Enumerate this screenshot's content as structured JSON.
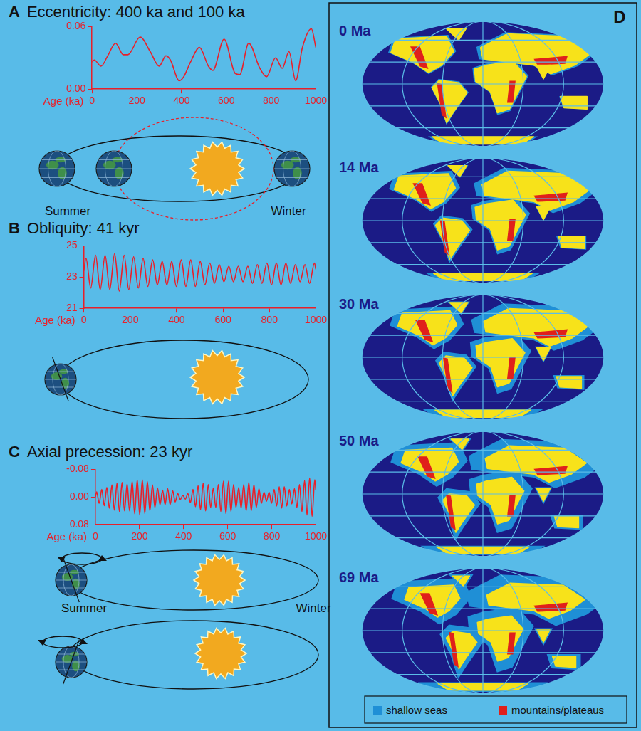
{
  "chart_data": [
    {
      "type": "line",
      "panel": "A",
      "title": "Eccentricity: 400 ka and 100 ka",
      "x_label": "Age (ka)",
      "color": "#e8202a",
      "x": [
        0,
        10,
        40,
        70,
        105,
        140,
        160,
        215,
        260,
        300,
        330,
        350,
        390,
        410,
        440,
        480,
        520,
        540,
        590,
        640,
        660,
        700,
        750,
        780,
        820,
        850,
        880,
        910,
        940,
        980,
        1000
      ],
      "values": [
        0.026,
        0.028,
        0.022,
        0.032,
        0.044,
        0.033,
        0.033,
        0.05,
        0.036,
        0.022,
        0.032,
        0.028,
        0.008,
        0.012,
        0.026,
        0.04,
        0.022,
        0.018,
        0.048,
        0.015,
        0.014,
        0.044,
        0.02,
        0.012,
        0.03,
        0.02,
        0.036,
        0.008,
        0.04,
        0.058,
        0.04
      ],
      "xlim": [
        0,
        1000
      ],
      "xticks": [
        0,
        200,
        400,
        600,
        800,
        1000
      ],
      "ylim": [
        0,
        0.06
      ],
      "yticks": [
        {
          "value": 0,
          "label": "0.00"
        },
        0.06
      ],
      "grid": false
    },
    {
      "type": "line",
      "panel": "B",
      "title": "Obliquity: 41 kyr",
      "x_label": "Age (ka)",
      "color": "#e8202a",
      "x": [
        0,
        10,
        30,
        51,
        71,
        92,
        112,
        133,
        153,
        174,
        194,
        215,
        235,
        256,
        276,
        297,
        317,
        338,
        358,
        379,
        399,
        420,
        440,
        461,
        481,
        502,
        522,
        543,
        563,
        584,
        604,
        625,
        645,
        666,
        686,
        707,
        727,
        748,
        768,
        789,
        809,
        830,
        850,
        871,
        891,
        912,
        932,
        953,
        973,
        994,
        1000
      ],
      "values": [
        23.4,
        24.2,
        22.3,
        24.4,
        22.2,
        24.4,
        22.2,
        24.5,
        22.1,
        24.4,
        22.2,
        24.3,
        22.3,
        24.2,
        22.4,
        24.1,
        22.5,
        24.0,
        22.5,
        24.0,
        22.4,
        24.1,
        22.4,
        24.1,
        22.4,
        24.0,
        22.5,
        23.9,
        22.6,
        23.8,
        22.7,
        23.7,
        22.7,
        23.7,
        22.7,
        23.7,
        22.6,
        23.8,
        22.6,
        23.9,
        22.5,
        23.9,
        22.5,
        23.9,
        22.6,
        23.8,
        22.7,
        23.8,
        22.6,
        23.9,
        23.5
      ],
      "xlim": [
        0,
        1000
      ],
      "xticks": [
        0,
        200,
        400,
        600,
        800,
        1000
      ],
      "ylim": [
        21,
        25
      ],
      "yticks": [
        21,
        23,
        25
      ],
      "grid": false
    },
    {
      "type": "line",
      "panel": "C",
      "title": "Axial precession: 23 kyr",
      "x_label": "Age (ka)",
      "color": "#e8202a",
      "x": [
        0,
        6,
        17,
        29,
        40,
        52,
        63,
        75,
        86,
        98,
        109,
        121,
        132,
        144,
        155,
        167,
        178,
        190,
        201,
        213,
        224,
        236,
        247,
        259,
        270,
        282,
        293,
        305,
        316,
        328,
        339,
        351,
        362,
        374,
        385,
        397,
        408,
        420,
        431,
        443,
        454,
        466,
        477,
        489,
        500,
        512,
        523,
        535,
        546,
        558,
        569,
        581,
        592,
        604,
        615,
        627,
        638,
        650,
        661,
        673,
        684,
        696,
        707,
        719,
        730,
        742,
        753,
        765,
        776,
        788,
        799,
        811,
        822,
        834,
        845,
        857,
        868,
        880,
        891,
        903,
        914,
        926,
        937,
        949,
        960,
        972,
        983,
        995,
        1000
      ],
      "values": [
        0,
        -0.015,
        0.018,
        -0.022,
        0.025,
        -0.028,
        0.032,
        -0.035,
        0.038,
        -0.04,
        0.042,
        -0.042,
        0.04,
        -0.038,
        0.04,
        -0.045,
        0.048,
        -0.05,
        0.052,
        -0.05,
        0.048,
        -0.044,
        0.04,
        -0.035,
        0.03,
        -0.026,
        0.022,
        -0.02,
        0.022,
        -0.024,
        0.022,
        -0.018,
        0.014,
        -0.01,
        0.007,
        -0.005,
        0.006,
        -0.01,
        0.016,
        -0.022,
        0.028,
        -0.033,
        0.037,
        -0.04,
        0.04,
        -0.036,
        0.03,
        -0.026,
        0.03,
        -0.036,
        0.042,
        -0.046,
        0.048,
        -0.046,
        0.042,
        -0.036,
        0.03,
        -0.028,
        0.032,
        -0.036,
        0.04,
        -0.042,
        0.04,
        -0.036,
        0.03,
        -0.024,
        0.018,
        -0.014,
        0.012,
        -0.014,
        0.018,
        -0.022,
        0.026,
        -0.03,
        0.032,
        -0.03,
        0.026,
        -0.022,
        0.02,
        -0.024,
        0.03,
        -0.036,
        0.042,
        -0.048,
        0.052,
        -0.055,
        0.056,
        -0.05,
        -0.02
      ],
      "xlim": [
        0,
        1000
      ],
      "xticks": [
        0,
        200,
        400,
        600,
        800,
        1000
      ],
      "ylim": [
        0.08,
        -0.08
      ],
      "yticks": [
        -0.08,
        {
          "value": 0,
          "label": "0.00"
        },
        0.08
      ],
      "grid": false
    }
  ],
  "orbit_labels": {
    "A": [
      "Summer",
      "Winter"
    ],
    "C": [
      "Summer",
      "Winter"
    ]
  },
  "paleogeography": {
    "panel": "D",
    "maps": [
      "0 Ma",
      "14 Ma",
      "30 Ma",
      "50 Ma",
      "69 Ma"
    ],
    "legend": [
      {
        "label": "shallow seas",
        "color": "#1f8fd6"
      },
      {
        "label": "mountains/plateaus",
        "color": "#e0201b"
      }
    ]
  }
}
